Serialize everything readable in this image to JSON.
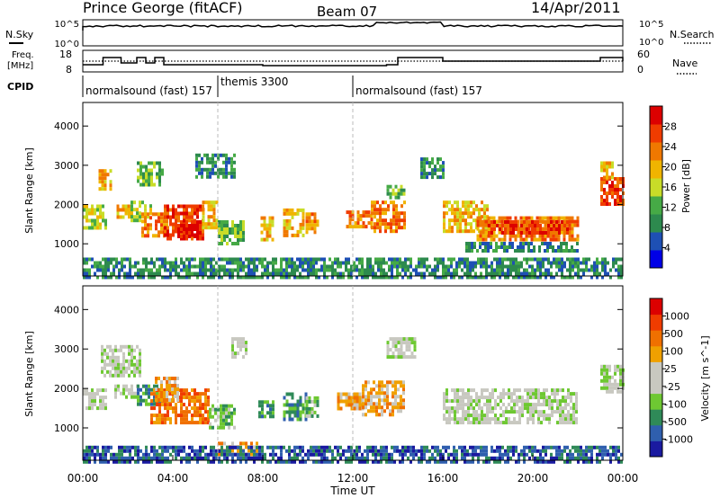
{
  "header": {
    "station": "Prince George (fitACF)",
    "beam": "Beam 07",
    "date": "14/Apr/2011"
  },
  "top_panels": {
    "nsky_label": "N.Sky",
    "nsky_ticks": [
      "10^5",
      "10^0"
    ],
    "nsearch_label": "N.Search",
    "nsearch_ticks": [
      "10^5",
      "10^0"
    ],
    "freq_label_1": "Freq.",
    "freq_label_2": "[MHz]",
    "freq_ticks": [
      "18",
      "8"
    ],
    "nave_label": "Nave",
    "nave_ticks": [
      "60",
      "0"
    ],
    "cpid_label": "CPID",
    "cpid_modes": [
      {
        "label": "normalsound (fast) 157",
        "start_hour": 0
      },
      {
        "label": "themis 3300",
        "start_hour": 6
      },
      {
        "label": "normalsound (fast) 157",
        "start_hour": 12
      }
    ]
  },
  "x_axis": {
    "label": "Time UT",
    "ticks": [
      "00:00",
      "04:00",
      "08:00",
      "12:00",
      "16:00",
      "20:00",
      "00:00"
    ]
  },
  "colors": {
    "power": [
      "#0000e6",
      "#1e50b4",
      "#2d8a4e",
      "#46aa46",
      "#c8dc28",
      "#f0b400",
      "#f07800",
      "#f03c00",
      "#dc0000"
    ],
    "velocity": [
      "#1a1aa0",
      "#2f5fae",
      "#2f8a58",
      "#6ec832",
      "#c8c8c0",
      "#c8c8c0",
      "#f0a000",
      "#f07000",
      "#f03c00",
      "#dc0000"
    ]
  },
  "chart_data": [
    {
      "type": "heatmap",
      "quantity": "Power",
      "ylabel": "Slant Range [km]",
      "ylim": [
        180,
        4600
      ],
      "yticks": [
        1000,
        2000,
        3000,
        4000
      ],
      "xlim_hours": [
        0,
        24
      ],
      "colorbar_label": "Power [dB]",
      "colorbar_ticks": [
        "28",
        "24",
        "20",
        "16",
        "12",
        "8",
        "4"
      ],
      "echo_regions": [
        {
          "start": 0.0,
          "end": 1.0,
          "low": 1400,
          "high": 2000,
          "level": 4
        },
        {
          "start": 0.7,
          "end": 1.2,
          "low": 2400,
          "high": 2900,
          "level": 5
        },
        {
          "start": 1.5,
          "end": 2.2,
          "low": 1700,
          "high": 2000,
          "level": 5
        },
        {
          "start": 2.0,
          "end": 3.0,
          "low": 1600,
          "high": 2100,
          "level": 4
        },
        {
          "start": 2.4,
          "end": 3.6,
          "low": 2500,
          "high": 3100,
          "level": 3
        },
        {
          "start": 2.6,
          "end": 3.8,
          "low": 1200,
          "high": 1800,
          "level": 6
        },
        {
          "start": 3.6,
          "end": 5.4,
          "low": 1100,
          "high": 2000,
          "level": 7
        },
        {
          "start": 4.2,
          "end": 5.2,
          "low": 1200,
          "high": 1600,
          "level": 8
        },
        {
          "start": 5.3,
          "end": 6.0,
          "low": 1400,
          "high": 2100,
          "level": 5
        },
        {
          "start": 5.0,
          "end": 6.8,
          "low": 2700,
          "high": 3300,
          "level": 2
        },
        {
          "start": 6.0,
          "end": 7.2,
          "low": 1000,
          "high": 1600,
          "level": 3
        },
        {
          "start": 7.9,
          "end": 8.5,
          "low": 1100,
          "high": 1700,
          "level": 5
        },
        {
          "start": 8.9,
          "end": 9.8,
          "low": 1200,
          "high": 1900,
          "level": 5
        },
        {
          "start": 9.9,
          "end": 10.5,
          "low": 1300,
          "high": 1800,
          "level": 6
        },
        {
          "start": 11.7,
          "end": 12.8,
          "low": 1450,
          "high": 1850,
          "level": 6
        },
        {
          "start": 12.8,
          "end": 14.3,
          "low": 1300,
          "high": 2100,
          "level": 6
        },
        {
          "start": 13.5,
          "end": 14.3,
          "low": 2200,
          "high": 2500,
          "level": 3
        },
        {
          "start": 15.0,
          "end": 16.0,
          "low": 2700,
          "high": 3200,
          "level": 2
        },
        {
          "start": 16.0,
          "end": 18.0,
          "low": 1350,
          "high": 2100,
          "level": 5
        },
        {
          "start": 17.5,
          "end": 22.0,
          "low": 1100,
          "high": 1700,
          "level": 6
        },
        {
          "start": 18.0,
          "end": 21.5,
          "low": 1300,
          "high": 1600,
          "level": 7
        },
        {
          "start": 17.0,
          "end": 22.0,
          "low": 850,
          "high": 1050,
          "level": 2
        },
        {
          "start": 23.0,
          "end": 24.0,
          "low": 2000,
          "high": 2700,
          "level": 7
        },
        {
          "start": 23.0,
          "end": 23.5,
          "low": 2700,
          "high": 3100,
          "level": 5
        },
        {
          "start": 0.0,
          "end": 24.0,
          "low": 180,
          "high": 650,
          "level": 2
        }
      ]
    },
    {
      "type": "heatmap",
      "quantity": "Velocity",
      "ylabel": "Slant Range [km]",
      "ylim": [
        180,
        4600
      ],
      "yticks": [
        1000,
        2000,
        3000,
        4000
      ],
      "xlim_hours": [
        0,
        24
      ],
      "colorbar_label": "Velocity [m s^-1]",
      "colorbar_ticks": [
        "1000",
        "500",
        "100",
        "25",
        "-25",
        "-100",
        "-500",
        "-1000"
      ],
      "echo_regions": [
        {
          "start": 0.0,
          "end": 1.0,
          "low": 1500,
          "high": 2000,
          "level": 4
        },
        {
          "start": 0.8,
          "end": 2.6,
          "low": 2300,
          "high": 3100,
          "level": 4
        },
        {
          "start": 1.4,
          "end": 2.4,
          "low": 1800,
          "high": 2100,
          "level": 4
        },
        {
          "start": 2.4,
          "end": 3.4,
          "low": 1600,
          "high": 2100,
          "level": 2
        },
        {
          "start": 3.0,
          "end": 5.6,
          "low": 1100,
          "high": 2000,
          "level": 7
        },
        {
          "start": 3.2,
          "end": 4.2,
          "low": 1700,
          "high": 2300,
          "level": 6
        },
        {
          "start": 5.6,
          "end": 6.8,
          "low": 1000,
          "high": 1600,
          "level": 3
        },
        {
          "start": 6.6,
          "end": 7.3,
          "low": 2800,
          "high": 3300,
          "level": 4
        },
        {
          "start": 7.8,
          "end": 8.5,
          "low": 1300,
          "high": 1700,
          "level": 2
        },
        {
          "start": 8.9,
          "end": 9.9,
          "low": 1200,
          "high": 1900,
          "level": 2
        },
        {
          "start": 9.9,
          "end": 10.5,
          "low": 1300,
          "high": 1800,
          "level": 3
        },
        {
          "start": 11.3,
          "end": 12.4,
          "low": 1500,
          "high": 1900,
          "level": 6
        },
        {
          "start": 12.4,
          "end": 14.3,
          "low": 1300,
          "high": 2200,
          "level": 6
        },
        {
          "start": 13.5,
          "end": 14.8,
          "low": 2800,
          "high": 3300,
          "level": 4
        },
        {
          "start": 16.0,
          "end": 22.0,
          "low": 1100,
          "high": 2000,
          "level": 4
        },
        {
          "start": 23.0,
          "end": 24.0,
          "low": 1900,
          "high": 2600,
          "level": 4
        },
        {
          "start": 6.0,
          "end": 7.8,
          "low": 300,
          "high": 650,
          "level": 6
        },
        {
          "start": 0.0,
          "end": 24.0,
          "low": 180,
          "high": 550,
          "level": 1
        }
      ]
    }
  ]
}
